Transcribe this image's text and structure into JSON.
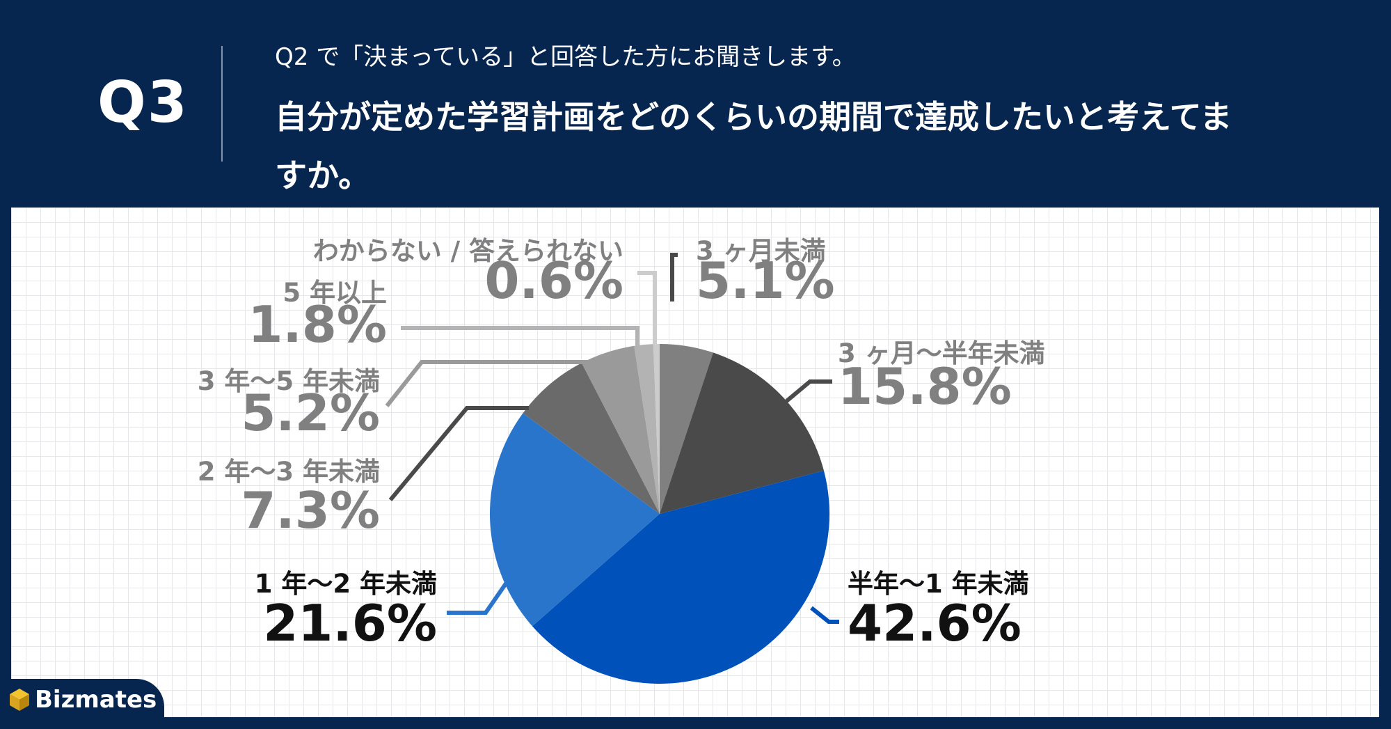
{
  "header": {
    "question_number": "Q3",
    "question_pre": "Q2 で「決まっている」と回答した方にお聞きします。",
    "question_main": "自分が定めた学習計画をどのくらいの期間で達成したいと考えてますか。"
  },
  "colors": {
    "header_bg": "#07264f",
    "panel_bg": "#ffffff",
    "grid": "#e5e7ea"
  },
  "chart_data": {
    "type": "pie",
    "start_angle_deg": 0,
    "direction": "clockwise",
    "slices": [
      {
        "label": "3 ヶ月未満",
        "value": 5.1,
        "display": "5.1%",
        "color": "#808080",
        "text_color": "#808080"
      },
      {
        "label": "3 ヶ月〜半年未満",
        "value": 15.8,
        "display": "15.8%",
        "color": "#4a4a4a",
        "text_color": "#808080"
      },
      {
        "label": "半年〜1 年未満",
        "value": 42.6,
        "display": "42.6%",
        "color": "#0051b9",
        "text_color": "#111111"
      },
      {
        "label": "1 年〜2 年未満",
        "value": 21.6,
        "display": "21.6%",
        "color": "#2a75cc",
        "text_color": "#111111"
      },
      {
        "label": "2 年〜3 年未満",
        "value": 7.3,
        "display": "7.3%",
        "color": "#6a6a6a",
        "text_color": "#808080"
      },
      {
        "label": "3 年〜5 年未満",
        "value": 5.2,
        "display": "5.2%",
        "color": "#9a9a9a",
        "text_color": "#808080"
      },
      {
        "label": "5 年以上",
        "value": 1.8,
        "display": "1.8%",
        "color": "#b3b3b3",
        "text_color": "#808080"
      },
      {
        "label": "わからない / 答えられない",
        "value": 0.6,
        "display": "0.6%",
        "color": "#cccccc",
        "text_color": "#808080"
      }
    ]
  },
  "logo": {
    "text": "Bizmates"
  }
}
